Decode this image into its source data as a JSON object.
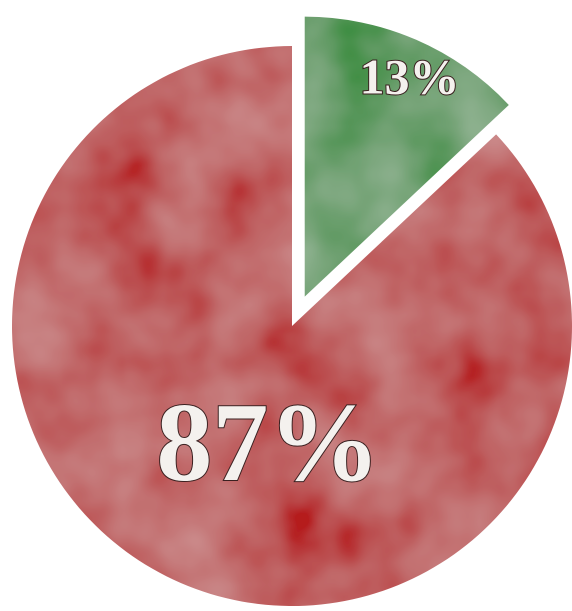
{
  "chart_data": {
    "type": "pie",
    "values": [
      13,
      87
    ],
    "value_labels": [
      "13%",
      "87%"
    ],
    "colors": [
      "#2f8a35",
      "#b51c1f"
    ]
  }
}
